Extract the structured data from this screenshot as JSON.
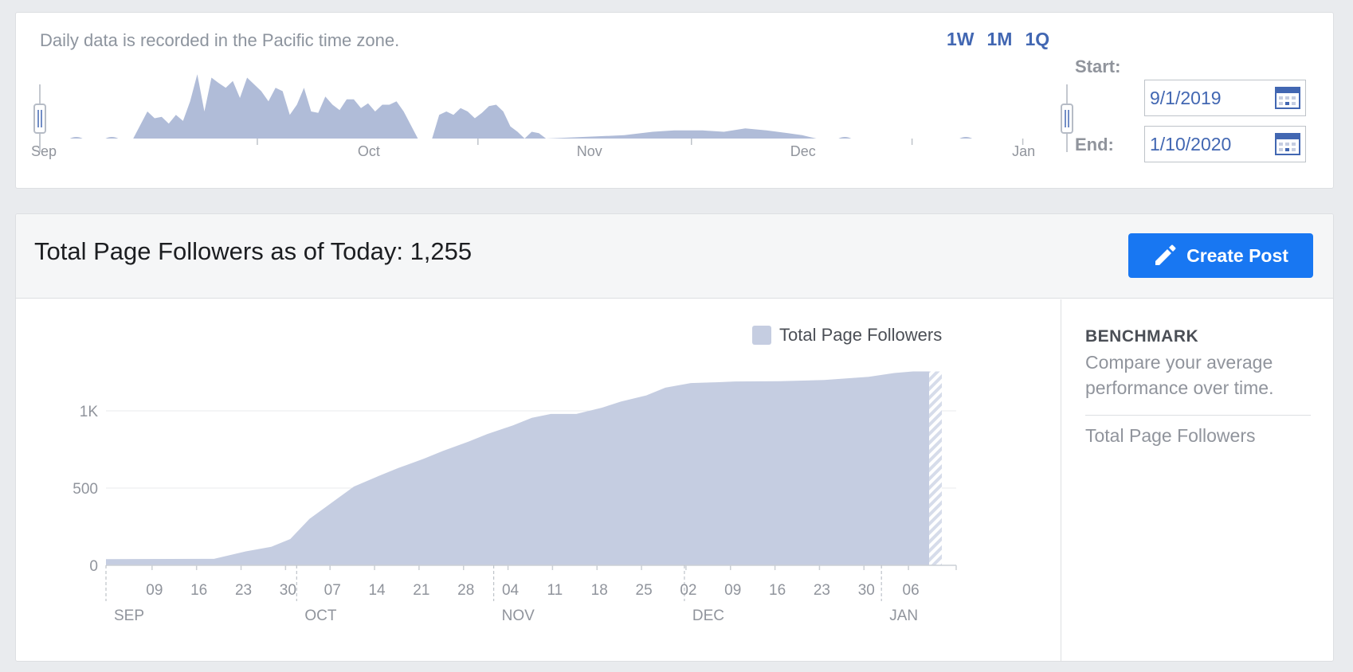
{
  "range_selector": {
    "timezone_note": "Daily data is recorded in the Pacific time zone.",
    "periods": [
      "1W",
      "1M",
      "1Q"
    ],
    "start_label": "Start:",
    "start_value": "9/1/2019",
    "end_label": "End:",
    "end_value": "1/10/2020",
    "mini_chart": {
      "month_labels": [
        "Sep",
        "Oct",
        "Nov",
        "Dec",
        "Jan"
      ]
    }
  },
  "header": {
    "title": "Total Page Followers as of Today: 1,255",
    "create_post_label": "Create Post"
  },
  "benchmark": {
    "title": "BENCHMARK",
    "description": "Compare your average performance over time.",
    "metric": "Total Page Followers"
  },
  "colors": {
    "area_fill": "#c5cde1",
    "mini_fill": "#b0bcd8",
    "accent": "#4267b2",
    "button": "#1877f2"
  },
  "chart_data": [
    {
      "type": "area",
      "title": "",
      "x_unit": "day",
      "x_range": [
        "2019-09-01",
        "2020-01-10"
      ],
      "day_labels": [
        "09",
        "16",
        "23",
        "30",
        "07",
        "14",
        "21",
        "28",
        "04",
        "11",
        "18",
        "25",
        "02",
        "09",
        "16",
        "23",
        "30",
        "06"
      ],
      "month_labels": [
        "SEP",
        "OCT",
        "NOV",
        "DEC",
        "JAN"
      ],
      "ylabel": "",
      "ylim": [
        0,
        1400
      ],
      "y_ticks": [
        {
          "v": 0,
          "label": "0"
        },
        {
          "v": 500,
          "label": "500"
        },
        {
          "v": 1000,
          "label": "1K"
        }
      ],
      "grid": true,
      "legend_position": "top-right",
      "series": [
        {
          "name": "Total Page Followers",
          "points": [
            [
              "2019-09-01",
              40
            ],
            [
              "2019-09-18",
              42
            ],
            [
              "2019-09-23",
              90
            ],
            [
              "2019-09-27",
              120
            ],
            [
              "2019-09-30",
              170
            ],
            [
              "2019-10-03",
              300
            ],
            [
              "2019-10-07",
              420
            ],
            [
              "2019-10-10",
              510
            ],
            [
              "2019-10-14",
              580
            ],
            [
              "2019-10-17",
              630
            ],
            [
              "2019-10-21",
              690
            ],
            [
              "2019-10-24",
              740
            ],
            [
              "2019-10-28",
              800
            ],
            [
              "2019-10-31",
              850
            ],
            [
              "2019-11-04",
              905
            ],
            [
              "2019-11-07",
              955
            ],
            [
              "2019-11-10",
              980
            ],
            [
              "2019-11-14",
              980
            ],
            [
              "2019-11-18",
              1020
            ],
            [
              "2019-11-21",
              1060
            ],
            [
              "2019-11-25",
              1100
            ],
            [
              "2019-11-28",
              1150
            ],
            [
              "2019-12-02",
              1180
            ],
            [
              "2019-12-06",
              1185
            ],
            [
              "2019-12-09",
              1190
            ],
            [
              "2019-12-16",
              1192
            ],
            [
              "2019-12-23",
              1200
            ],
            [
              "2019-12-30",
              1220
            ],
            [
              "2020-01-03",
              1245
            ],
            [
              "2020-01-06",
              1255
            ],
            [
              "2020-01-10",
              1255
            ]
          ]
        }
      ]
    },
    {
      "type": "area",
      "title": "",
      "x_range": [
        "2019-09-01",
        "2020-01-10"
      ],
      "month_labels": [
        "Sep",
        "Oct",
        "Nov",
        "Dec",
        "Jan"
      ],
      "series": [
        {
          "name": "",
          "points": [
            [
              "2019-09-01",
              0
            ],
            [
              "2019-09-10",
              0
            ],
            [
              "2019-09-12",
              0
            ],
            [
              "2019-09-13",
              0
            ],
            [
              "2019-09-14",
              20
            ],
            [
              "2019-09-15",
              40
            ],
            [
              "2019-09-16",
              30
            ],
            [
              "2019-09-17",
              32
            ],
            [
              "2019-09-18",
              22
            ],
            [
              "2019-09-19",
              35
            ],
            [
              "2019-09-20",
              26
            ],
            [
              "2019-09-21",
              55
            ],
            [
              "2019-09-22",
              95
            ],
            [
              "2019-09-23",
              40
            ],
            [
              "2019-09-24",
              90
            ],
            [
              "2019-09-25",
              82
            ],
            [
              "2019-09-26",
              75
            ],
            [
              "2019-09-27",
              85
            ],
            [
              "2019-09-28",
              60
            ],
            [
              "2019-09-29",
              90
            ],
            [
              "2019-09-30",
              80
            ],
            [
              "2019-10-01",
              70
            ],
            [
              "2019-10-02",
              55
            ],
            [
              "2019-10-03",
              75
            ],
            [
              "2019-10-04",
              70
            ],
            [
              "2019-10-05",
              35
            ],
            [
              "2019-10-06",
              50
            ],
            [
              "2019-10-07",
              75
            ],
            [
              "2019-10-08",
              40
            ],
            [
              "2019-10-09",
              38
            ],
            [
              "2019-10-10",
              62
            ],
            [
              "2019-10-11",
              50
            ],
            [
              "2019-10-12",
              42
            ],
            [
              "2019-10-13",
              58
            ],
            [
              "2019-10-14",
              58
            ],
            [
              "2019-10-15",
              45
            ],
            [
              "2019-10-16",
              52
            ],
            [
              "2019-10-17",
              40
            ],
            [
              "2019-10-18",
              50
            ],
            [
              "2019-10-19",
              50
            ],
            [
              "2019-10-20",
              55
            ],
            [
              "2019-10-21",
              40
            ],
            [
              "2019-10-22",
              20
            ],
            [
              "2019-10-23",
              0
            ],
            [
              "2019-10-24",
              0
            ],
            [
              "2019-10-25",
              0
            ],
            [
              "2019-10-26",
              35
            ],
            [
              "2019-10-27",
              40
            ],
            [
              "2019-10-28",
              35
            ],
            [
              "2019-10-29",
              45
            ],
            [
              "2019-10-30",
              40
            ],
            [
              "2019-10-31",
              30
            ],
            [
              "2019-11-01",
              38
            ],
            [
              "2019-11-02",
              48
            ],
            [
              "2019-11-03",
              50
            ],
            [
              "2019-11-04",
              40
            ],
            [
              "2019-11-05",
              18
            ],
            [
              "2019-11-06",
              10
            ],
            [
              "2019-11-07",
              0
            ],
            [
              "2019-11-08",
              10
            ],
            [
              "2019-11-09",
              8
            ],
            [
              "2019-11-10",
              0
            ],
            [
              "2019-11-21",
              5
            ],
            [
              "2019-11-25",
              10
            ],
            [
              "2019-11-28",
              12
            ],
            [
              "2019-12-02",
              12
            ],
            [
              "2019-12-05",
              10
            ],
            [
              "2019-12-08",
              15
            ],
            [
              "2019-12-11",
              12
            ],
            [
              "2019-12-14",
              8
            ],
            [
              "2019-12-16",
              5
            ],
            [
              "2019-12-18",
              0
            ],
            [
              "2020-01-10",
              0
            ]
          ]
        }
      ]
    }
  ]
}
